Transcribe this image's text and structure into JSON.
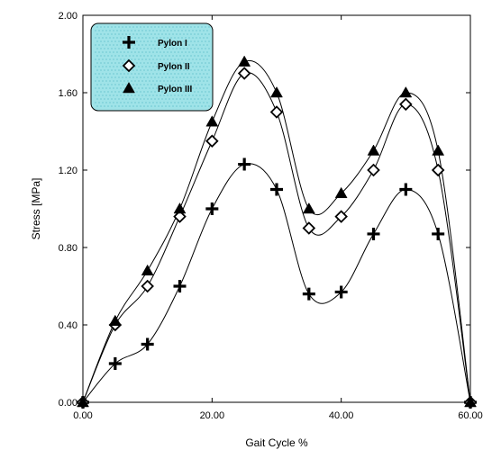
{
  "chart_data": {
    "type": "line",
    "xlabel": "Gait Cycle %",
    "ylabel": "Stress [MPa]",
    "xlim": [
      0,
      60
    ],
    "ylim": [
      0,
      2
    ],
    "x_ticks": [
      "0.00",
      "20.00",
      "40.00",
      "60.00"
    ],
    "y_ticks": [
      "0.00",
      "0.40",
      "0.80",
      "1.20",
      "1.60",
      "2.00"
    ],
    "grid": false,
    "legend_position": "top-left",
    "legend_fill": "#9fe3e8",
    "series": [
      {
        "name": "Pylon I",
        "marker": "plus",
        "x": [
          0,
          5,
          10,
          15,
          20,
          25,
          30,
          35,
          40,
          45,
          50,
          55,
          60
        ],
        "y": [
          0.0,
          0.2,
          0.3,
          0.6,
          1.0,
          1.23,
          1.1,
          0.56,
          0.57,
          0.87,
          1.1,
          0.87,
          0.0
        ]
      },
      {
        "name": "Pylon II",
        "marker": "diamond",
        "x": [
          0,
          5,
          10,
          15,
          20,
          25,
          30,
          35,
          40,
          45,
          50,
          55,
          60
        ],
        "y": [
          0.0,
          0.4,
          0.6,
          0.96,
          1.35,
          1.7,
          1.5,
          0.9,
          0.96,
          1.2,
          1.54,
          1.2,
          0.0
        ]
      },
      {
        "name": "Pylon III",
        "marker": "triangle",
        "x": [
          0,
          5,
          10,
          15,
          20,
          25,
          30,
          35,
          40,
          45,
          50,
          55,
          60
        ],
        "y": [
          0.0,
          0.42,
          0.68,
          1.0,
          1.45,
          1.76,
          1.6,
          1.0,
          1.08,
          1.3,
          1.6,
          1.3,
          0.0
        ]
      }
    ]
  }
}
